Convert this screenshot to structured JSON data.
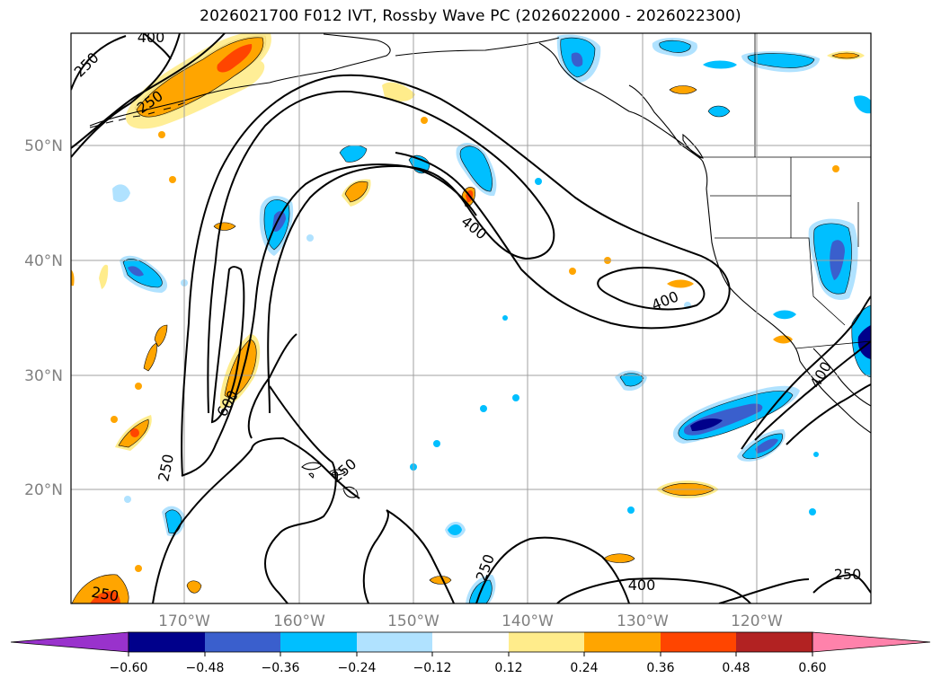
{
  "title": "2026021700 F012 IVT, Rossby Wave PC (2026022000 - 2026022300)",
  "map": {
    "lat_ticks": [
      {
        "value": 50,
        "label": "50°N"
      },
      {
        "value": 40,
        "label": "40°N"
      },
      {
        "value": 30,
        "label": "30°N"
      },
      {
        "value": 20,
        "label": "20°N"
      }
    ],
    "lon_ticks": [
      {
        "value": -170,
        "label": "170°W"
      },
      {
        "value": -160,
        "label": "160°W"
      },
      {
        "value": -150,
        "label": "150°W"
      },
      {
        "value": -140,
        "label": "140°W"
      },
      {
        "value": -130,
        "label": "130°W"
      },
      {
        "value": -120,
        "label": "120°W"
      }
    ],
    "extent": {
      "lon_min": -180,
      "lon_max": -110,
      "lat_min": 10,
      "lat_max": 60
    },
    "contour_labels": [
      "400",
      "250",
      "250",
      "400",
      "400",
      "600",
      "250",
      "250",
      "250",
      "400",
      "250",
      "400",
      "250"
    ]
  },
  "colorbar": {
    "colors": [
      "#9932cc",
      "#00008b",
      "#3a5fcd",
      "#00bfff",
      "#b0e2ff",
      "#ffffff",
      "#ffec8b",
      "#ffa500",
      "#ff4500",
      "#b22222",
      "#ff82ab"
    ],
    "tick_labels": [
      "−0.60",
      "−0.48",
      "−0.36",
      "−0.24",
      "−0.12",
      "0.12",
      "0.24",
      "0.36",
      "0.48",
      "0.60"
    ]
  }
}
